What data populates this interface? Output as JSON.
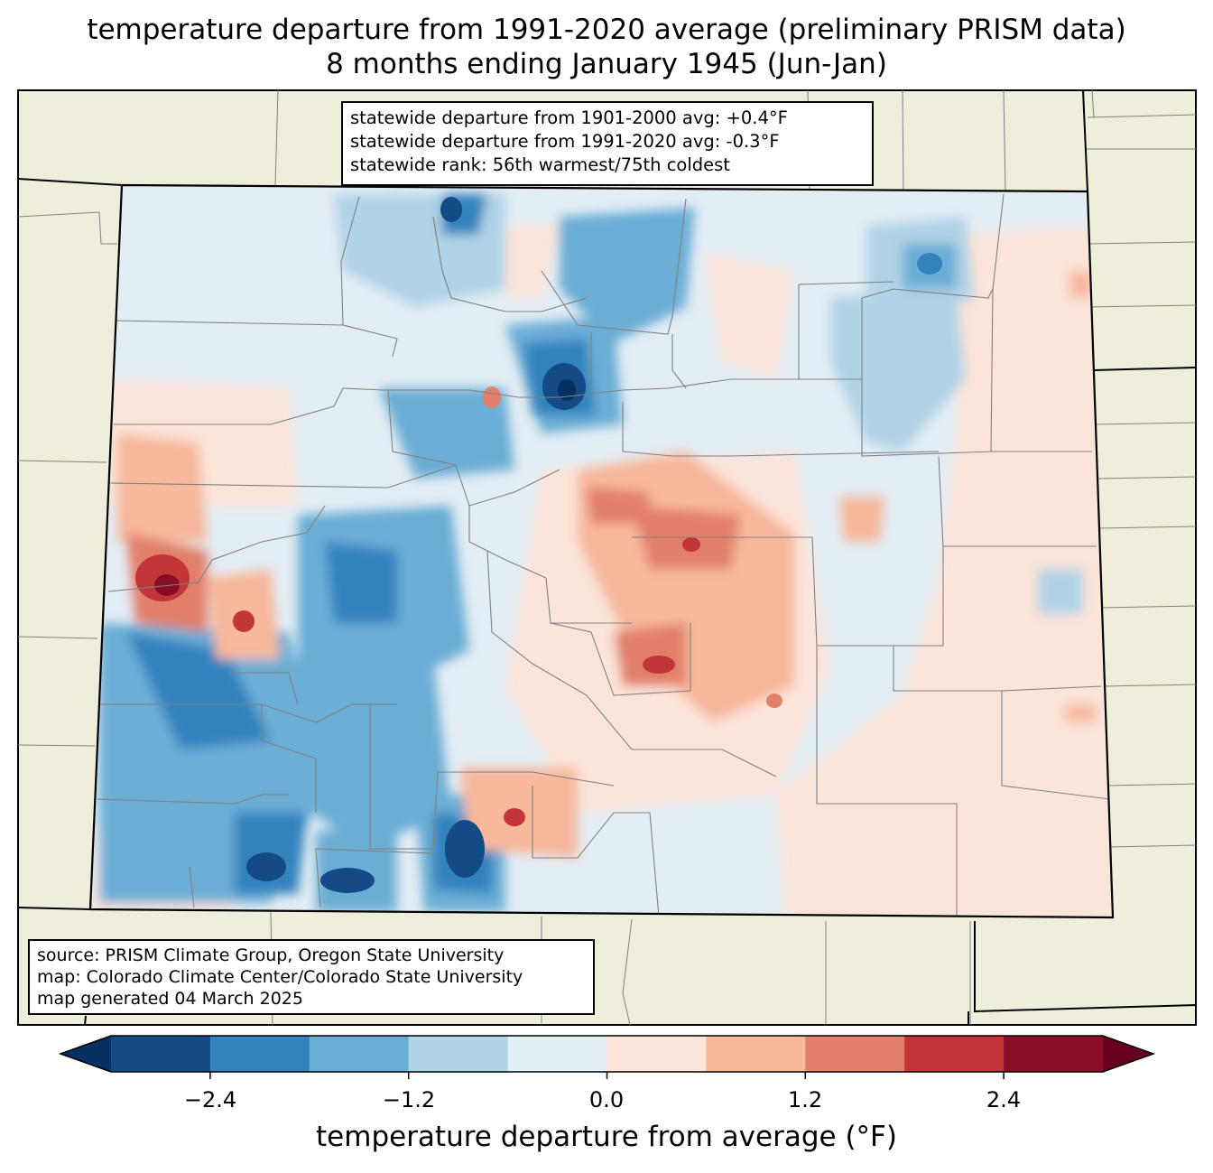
{
  "title": {
    "line1": "temperature departure from 1991-2020 average (preliminary PRISM data)",
    "line2": "8 months ending January 1945 (Jun-Jan)"
  },
  "stats": {
    "line1": "statewide departure from 1901-2000 avg: +0.4°F",
    "line2": "statewide departure from 1991-2020 avg: -0.3°F",
    "line3": "statewide rank: 56th warmest/75th coldest"
  },
  "source": {
    "line1": "source: PRISM Climate Group, Oregon State University",
    "line2": "map: Colorado Climate Center/Colorado State University",
    "line3": "map generated 04 March 2025"
  },
  "colorbar": {
    "label": "temperature departure from average (°F)",
    "ticks": [
      "−2.4",
      "−1.2",
      "0.0",
      "1.2",
      "2.4"
    ],
    "tick_values": [
      -2.4,
      -1.2,
      0.0,
      1.2,
      2.4
    ],
    "bounds": [
      -3.0,
      -2.4,
      -1.8,
      -1.2,
      -0.6,
      0.0,
      0.6,
      1.2,
      1.8,
      2.4,
      3.0
    ],
    "colors": [
      "#144b87",
      "#3282be",
      "#6aadd5",
      "#b0d3e7",
      "#e3edf4",
      "#fbe4d9",
      "#f7b89c",
      "#e17f69",
      "#c23639",
      "#8a0c26"
    ],
    "extend_low_color": "#053061",
    "extend_high_color": "#67001f"
  },
  "map_colors": {
    "land": "#efeedb",
    "state_border": "#000000",
    "county_border": "#808080"
  }
}
